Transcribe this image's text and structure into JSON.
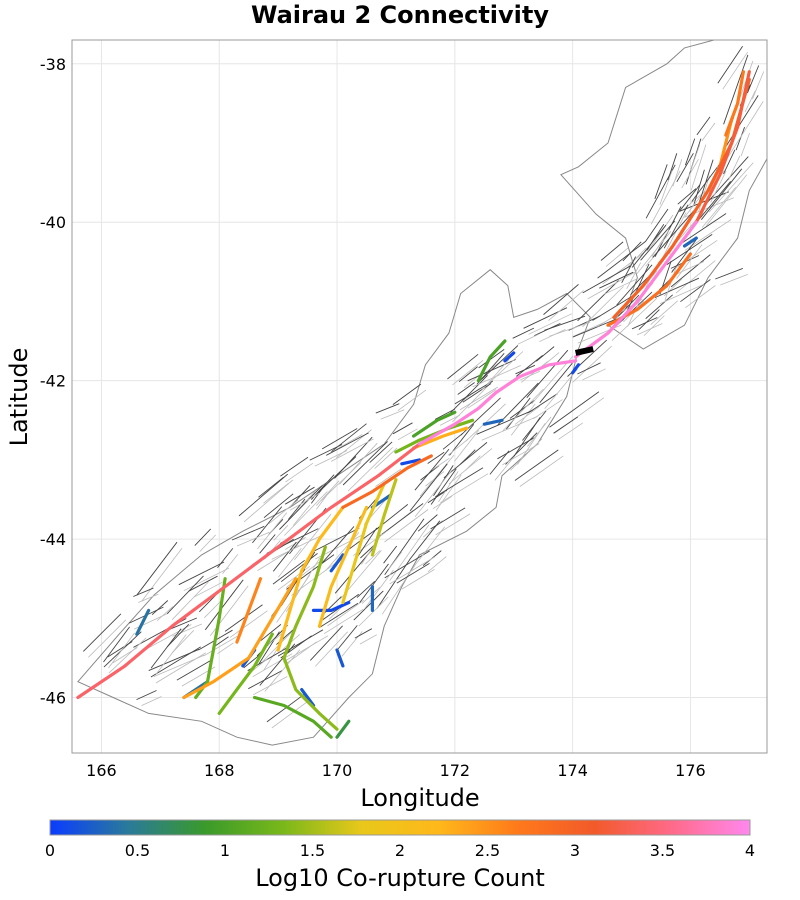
{
  "chart_data": {
    "type": "map",
    "title": "Wairau 2 Connectivity",
    "xlabel": "Longitude",
    "ylabel": "Latitude",
    "xlim": [
      165.5,
      177.3
    ],
    "ylim": [
      -46.7,
      -37.7
    ],
    "x_ticks": [
      166,
      168,
      170,
      172,
      174,
      176
    ],
    "y_ticks": [
      -38,
      -40,
      -42,
      -44,
      -46
    ],
    "x_tick_labels": [
      "166",
      "168",
      "170",
      "172",
      "174",
      "176"
    ],
    "y_tick_labels": [
      "-38",
      "-40",
      "-42",
      "-44",
      "-46"
    ],
    "grid": true,
    "colorbar": {
      "label": "Log10 Co-rupture Count",
      "range": [
        0,
        4
      ],
      "ticks": [
        0,
        0.5,
        1,
        1.5,
        2,
        2.5,
        3,
        3.5,
        4
      ],
      "tick_labels": [
        "0",
        "0.5",
        "1",
        "1.5",
        "2",
        "2.5",
        "3",
        "3.5",
        "4"
      ],
      "colors": [
        "#0a3cff",
        "#2a7a9a",
        "#3a9a2a",
        "#7ab81a",
        "#e8c81a",
        "#ffb81a",
        "#ff7a1a",
        "#f25a2a",
        "#ff6a8a",
        "#ff88ee"
      ]
    },
    "source_fault": {
      "name": "Wairau 2",
      "color": "#000000",
      "path": [
        [
          174.05,
          -41.65
        ],
        [
          174.35,
          -41.6
        ]
      ]
    },
    "faults": [
      {
        "value": 3.9,
        "path": [
          [
            174.05,
            -41.75
          ],
          [
            173.6,
            -41.8
          ],
          [
            173.1,
            -41.95
          ],
          [
            172.7,
            -42.15
          ],
          [
            172.4,
            -42.35
          ],
          [
            172.0,
            -42.55
          ],
          [
            171.4,
            -42.8
          ]
        ]
      },
      {
        "value": 3.9,
        "path": [
          [
            174.05,
            -41.7
          ],
          [
            174.6,
            -41.4
          ],
          [
            175.1,
            -41.0
          ],
          [
            175.6,
            -40.5
          ],
          [
            176.1,
            -40.0
          ]
        ]
      },
      {
        "value": 3.4,
        "path": [
          [
            171.4,
            -42.8
          ],
          [
            170.7,
            -43.2
          ],
          [
            169.9,
            -43.6
          ],
          [
            169.0,
            -44.1
          ],
          [
            168.1,
            -44.6
          ],
          [
            167.2,
            -45.1
          ],
          [
            166.4,
            -45.6
          ],
          [
            165.6,
            -46.0
          ]
        ]
      },
      {
        "value": 3.2,
        "path": [
          [
            176.1,
            -40.0
          ],
          [
            176.5,
            -39.4
          ],
          [
            176.8,
            -38.8
          ],
          [
            177.0,
            -38.1
          ]
        ]
      },
      {
        "value": 3.0,
        "path": [
          [
            174.7,
            -41.2
          ],
          [
            175.2,
            -40.8
          ],
          [
            175.7,
            -40.3
          ],
          [
            176.3,
            -39.6
          ],
          [
            176.7,
            -39.0
          ],
          [
            177.0,
            -38.2
          ]
        ]
      },
      {
        "value": 2.8,
        "path": [
          [
            174.6,
            -41.3
          ],
          [
            175.1,
            -41.1
          ],
          [
            175.6,
            -40.8
          ],
          [
            176.0,
            -40.4
          ]
        ]
      },
      {
        "value": 2.6,
        "path": [
          [
            168.7,
            -44.5
          ],
          [
            168.5,
            -44.9
          ],
          [
            168.3,
            -45.3
          ]
        ]
      },
      {
        "value": 2.9,
        "path": [
          [
            170.1,
            -43.6
          ],
          [
            170.6,
            -43.4
          ],
          [
            171.2,
            -43.1
          ],
          [
            171.6,
            -42.95
          ]
        ]
      },
      {
        "value": 2.3,
        "path": [
          [
            171.3,
            -42.85
          ],
          [
            171.8,
            -42.7
          ],
          [
            172.2,
            -42.6
          ]
        ]
      },
      {
        "value": 2.7,
        "path": [
          [
            176.6,
            -38.9
          ],
          [
            176.8,
            -38.5
          ],
          [
            176.9,
            -38.1
          ]
        ]
      },
      {
        "value": 2.2,
        "path": [
          [
            170.1,
            -43.6
          ],
          [
            169.7,
            -44.0
          ],
          [
            169.4,
            -44.4
          ],
          [
            169.2,
            -44.9
          ],
          [
            169.0,
            -45.4
          ]
        ]
      },
      {
        "value": 2.1,
        "path": [
          [
            170.5,
            -43.6
          ],
          [
            170.2,
            -44.1
          ],
          [
            169.9,
            -44.6
          ],
          [
            169.7,
            -45.1
          ]
        ]
      },
      {
        "value": 2.4,
        "path": [
          [
            169.3,
            -44.5
          ],
          [
            168.9,
            -45.0
          ],
          [
            168.5,
            -45.5
          ],
          [
            167.9,
            -45.8
          ],
          [
            167.4,
            -46.0
          ]
        ]
      },
      {
        "value": 1.8,
        "path": [
          [
            170.8,
            -43.3
          ],
          [
            170.5,
            -43.8
          ],
          [
            170.3,
            -44.3
          ],
          [
            170.1,
            -44.8
          ]
        ]
      },
      {
        "value": 1.6,
        "path": [
          [
            171.0,
            -43.25
          ],
          [
            170.8,
            -43.7
          ],
          [
            170.6,
            -44.2
          ]
        ]
      },
      {
        "value": 1.4,
        "path": [
          [
            169.8,
            -44.1
          ],
          [
            169.6,
            -44.6
          ],
          [
            169.3,
            -45.1
          ],
          [
            169.1,
            -45.5
          ],
          [
            169.3,
            -45.9
          ],
          [
            169.7,
            -46.2
          ],
          [
            170.0,
            -46.4
          ]
        ]
      },
      {
        "value": 1.2,
        "path": [
          [
            168.1,
            -44.5
          ],
          [
            168.0,
            -45.0
          ],
          [
            167.9,
            -45.4
          ],
          [
            167.8,
            -45.8
          ],
          [
            167.6,
            -46.0
          ]
        ]
      },
      {
        "value": 1.3,
        "path": [
          [
            168.9,
            -45.2
          ],
          [
            168.6,
            -45.6
          ],
          [
            168.3,
            -45.9
          ],
          [
            168.0,
            -46.2
          ]
        ]
      },
      {
        "value": 1.1,
        "path": [
          [
            168.6,
            -46.0
          ],
          [
            169.1,
            -46.1
          ],
          [
            169.6,
            -46.3
          ],
          [
            169.9,
            -46.5
          ]
        ]
      },
      {
        "value": 1.0,
        "path": [
          [
            172.4,
            -42.0
          ],
          [
            172.6,
            -41.7
          ],
          [
            172.85,
            -41.5
          ]
        ]
      },
      {
        "value": 1.0,
        "path": [
          [
            171.3,
            -42.7
          ],
          [
            171.7,
            -42.5
          ],
          [
            172.0,
            -42.4
          ]
        ]
      },
      {
        "value": 1.3,
        "path": [
          [
            171.0,
            -42.9
          ],
          [
            171.4,
            -42.75
          ],
          [
            171.9,
            -42.6
          ],
          [
            172.3,
            -42.5
          ]
        ]
      },
      {
        "value": 0.3,
        "path": [
          [
            172.5,
            -42.55
          ],
          [
            172.8,
            -42.5
          ]
        ]
      },
      {
        "value": 0.2,
        "path": [
          [
            170.1,
            -44.2
          ],
          [
            169.9,
            -44.4
          ]
        ]
      },
      {
        "value": 0.1,
        "path": [
          [
            170.2,
            -44.8
          ],
          [
            169.9,
            -44.9
          ],
          [
            169.6,
            -44.9
          ]
        ]
      },
      {
        "value": 0.2,
        "path": [
          [
            170.0,
            -45.4
          ],
          [
            170.1,
            -45.6
          ]
        ]
      },
      {
        "value": 0.3,
        "path": [
          [
            170.9,
            -43.45
          ],
          [
            170.6,
            -43.6
          ]
        ]
      },
      {
        "value": 0.2,
        "path": [
          [
            169.4,
            -45.9
          ],
          [
            169.6,
            -46.1
          ]
        ]
      },
      {
        "value": 0.4,
        "path": [
          [
            166.8,
            -44.9
          ],
          [
            166.6,
            -45.2
          ]
        ]
      },
      {
        "value": 0.4,
        "path": [
          [
            167.8,
            -45.8
          ],
          [
            167.4,
            -46.0
          ]
        ]
      },
      {
        "value": 0.2,
        "path": [
          [
            168.6,
            -45.4
          ],
          [
            168.4,
            -45.6
          ]
        ]
      },
      {
        "value": 0.1,
        "path": [
          [
            171.4,
            -43.0
          ],
          [
            171.1,
            -43.05
          ]
        ]
      },
      {
        "value": 0.1,
        "path": [
          [
            173.0,
            -41.65
          ],
          [
            172.85,
            -41.75
          ]
        ]
      },
      {
        "value": 0.1,
        "path": [
          [
            174.1,
            -41.8
          ],
          [
            174.0,
            -41.9
          ]
        ]
      },
      {
        "value": 0.3,
        "path": [
          [
            176.1,
            -40.2
          ],
          [
            175.9,
            -40.3
          ]
        ]
      },
      {
        "value": 0.3,
        "path": [
          [
            170.6,
            -44.6
          ],
          [
            170.6,
            -44.9
          ]
        ]
      },
      {
        "value": 0.8,
        "path": [
          [
            170.2,
            -46.3
          ],
          [
            170.0,
            -46.5
          ]
        ]
      },
      {
        "value": 2.5,
        "path": [
          [
            176.7,
            -38.7
          ],
          [
            176.5,
            -39.3
          ],
          [
            176.3,
            -39.6
          ]
        ]
      }
    ]
  }
}
